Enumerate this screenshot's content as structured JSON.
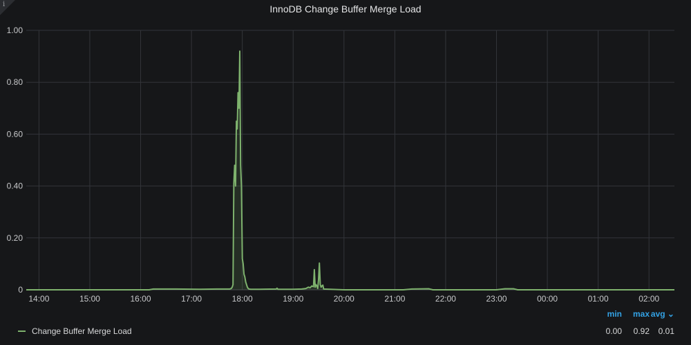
{
  "panel": {
    "title": "InnoDB Change Buffer Merge Load",
    "info_icon": "info-icon"
  },
  "legend": {
    "headers": {
      "min": "min",
      "max": "max",
      "avg": "avg ⌄"
    },
    "series": [
      {
        "name": "Change Buffer Merge Load",
        "min": "0.00",
        "max": "0.92",
        "avg": "0.01",
        "color": "#7eb26d"
      }
    ]
  },
  "chart_data": {
    "type": "line",
    "title": "InnoDB Change Buffer Merge Load",
    "xlabel": "",
    "ylabel": "",
    "ylim": [
      0,
      1.0
    ],
    "yticks": [
      "0",
      "0.20",
      "0.40",
      "0.60",
      "0.80",
      "1.00"
    ],
    "ytick_values": [
      0,
      0.2,
      0.4,
      0.6,
      0.8,
      1.0
    ],
    "xlim": [
      "13:45",
      "02:30"
    ],
    "xticks": [
      "14:00",
      "15:00",
      "16:00",
      "17:00",
      "18:00",
      "19:00",
      "20:00",
      "21:00",
      "22:00",
      "23:00",
      "00:00",
      "01:00",
      "02:00"
    ],
    "grid": true,
    "legend_position": "bottom",
    "series": [
      {
        "name": "Change Buffer Merge Load",
        "color": "#7eb26d",
        "x": [
          "13:45",
          "16:10",
          "16:15",
          "16:40",
          "17:10",
          "17:30",
          "17:45",
          "17:47",
          "17:48",
          "17:49",
          "17:50",
          "17:51",
          "17:52",
          "17:53",
          "17:54",
          "17:55",
          "17:56",
          "17:57",
          "17:58",
          "17:59",
          "18:00",
          "18:01",
          "18:02",
          "18:03",
          "18:04",
          "18:05",
          "18:06",
          "18:07",
          "18:08",
          "18:10",
          "18:20",
          "18:40",
          "18:41",
          "18:42",
          "19:00",
          "19:10",
          "19:15",
          "19:18",
          "19:20",
          "19:22",
          "19:24",
          "19:25",
          "19:26",
          "19:27",
          "19:28",
          "19:29",
          "19:30",
          "19:31",
          "19:32",
          "19:33",
          "19:34",
          "19:35",
          "19:36",
          "20:00",
          "21:10",
          "21:20",
          "21:40",
          "21:45",
          "23:00",
          "23:10",
          "23:20",
          "23:25",
          "02:30"
        ],
        "y": [
          0,
          0,
          0.003,
          0.003,
          0.002,
          0.003,
          0.003,
          0.005,
          0.01,
          0.02,
          0.41,
          0.48,
          0.4,
          0.65,
          0.62,
          0.76,
          0.7,
          0.92,
          0.48,
          0.4,
          0.12,
          0.1,
          0.06,
          0.05,
          0.03,
          0.02,
          0.01,
          0.005,
          0.003,
          0.002,
          0.002,
          0.003,
          0.006,
          0.002,
          0.002,
          0.003,
          0.005,
          0.01,
          0.008,
          0.015,
          0.012,
          0.078,
          0.01,
          0.02,
          0.015,
          0.005,
          0.04,
          0.103,
          0.02,
          0.01,
          0.015,
          0.018,
          0.003,
          0,
          0,
          0.003,
          0.004,
          0,
          0,
          0.004,
          0.004,
          0,
          0
        ]
      }
    ]
  }
}
